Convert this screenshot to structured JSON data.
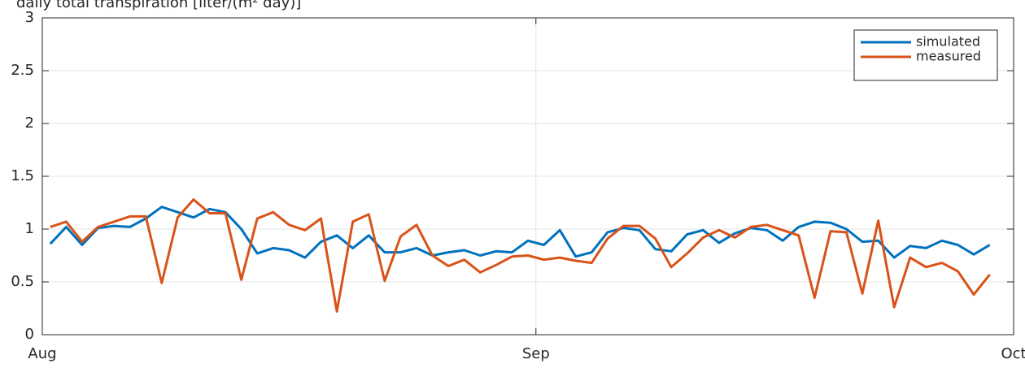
{
  "chart_data": {
    "type": "line",
    "title": "daily total transpiration [liter/(m² day)]",
    "x": [
      0.5,
      1.5,
      2.5,
      3.5,
      4.5,
      5.5,
      6.5,
      7.5,
      8.5,
      9.5,
      10.5,
      11.5,
      12.5,
      13.5,
      14.5,
      15.5,
      16.5,
      17.5,
      18.5,
      19.5,
      20.5,
      21.5,
      22.5,
      23.5,
      24.5,
      25.5,
      26.5,
      27.5,
      28.5,
      29.5,
      30.5,
      31.5,
      32.5,
      33.5,
      34.5,
      35.5,
      36.5,
      37.5,
      38.5,
      39.5,
      40.5,
      41.5,
      42.5,
      43.5,
      44.5,
      45.5,
      46.5,
      47.5,
      48.5,
      49.5,
      50.5,
      51.5,
      52.5,
      53.5,
      54.5,
      55.5,
      56.5,
      57.5,
      58.5,
      59.5
    ],
    "series": [
      {
        "name": "simulated",
        "color": "#0072bd",
        "values": [
          0.86,
          1.02,
          0.85,
          1.01,
          1.03,
          1.02,
          1.1,
          1.21,
          1.16,
          1.11,
          1.19,
          1.16,
          1.0,
          0.77,
          0.82,
          0.8,
          0.73,
          0.88,
          0.94,
          0.82,
          0.94,
          0.78,
          0.78,
          0.82,
          0.75,
          0.78,
          0.8,
          0.75,
          0.79,
          0.78,
          0.89,
          0.85,
          0.99,
          0.74,
          0.78,
          0.97,
          1.01,
          0.99,
          0.81,
          0.79,
          0.95,
          0.99,
          0.87,
          0.96,
          1.01,
          0.99,
          0.89,
          1.02,
          1.07,
          1.06,
          1.0,
          0.88,
          0.89,
          0.73,
          0.84,
          0.82,
          0.89,
          0.85,
          0.76,
          0.85
        ]
      },
      {
        "name": "measured",
        "color": "#d95319",
        "values": [
          1.02,
          1.07,
          0.88,
          1.02,
          1.07,
          1.12,
          1.12,
          0.49,
          1.11,
          1.28,
          1.15,
          1.15,
          0.52,
          1.1,
          1.16,
          1.04,
          0.99,
          1.1,
          0.22,
          1.07,
          1.14,
          0.51,
          0.93,
          1.04,
          0.75,
          0.65,
          0.71,
          0.59,
          0.66,
          0.74,
          0.75,
          0.71,
          0.73,
          0.7,
          0.68,
          0.91,
          1.03,
          1.03,
          0.91,
          0.64,
          0.77,
          0.92,
          0.99,
          0.92,
          1.02,
          1.04,
          0.99,
          0.94,
          0.35,
          0.98,
          0.97,
          0.39,
          1.08,
          0.26,
          0.73,
          0.64,
          0.68,
          0.6,
          0.38,
          0.57
        ]
      }
    ],
    "xlim": [
      0,
      61
    ],
    "xticks": [
      {
        "value": 0,
        "label": "Aug"
      },
      {
        "value": 31,
        "label": "Sep"
      },
      {
        "value": 61,
        "label": "Oct"
      }
    ],
    "ylim": [
      0,
      3
    ],
    "yticks": [
      0,
      0.5,
      1,
      1.5,
      2,
      2.5,
      3
    ],
    "grid": true,
    "legend": "northeast"
  }
}
